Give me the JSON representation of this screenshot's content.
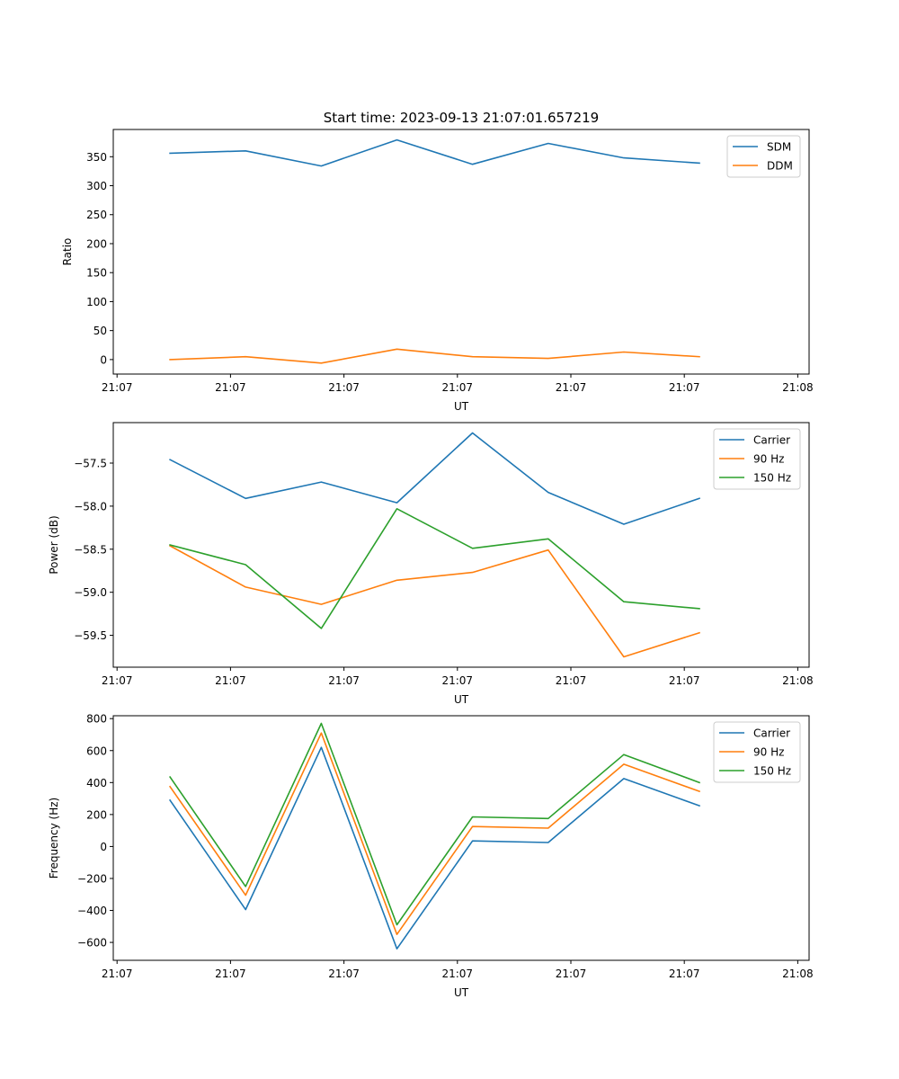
{
  "figure_title": "Start time: 2023-09-13 21:07:01.657219",
  "chart_data": [
    {
      "type": "line",
      "title": "Start time: 2023-09-13 21:07:01.657219",
      "xlabel": "UT",
      "ylabel": "Ratio",
      "x_index": [
        0,
        1,
        2,
        3,
        4,
        5,
        6,
        7
      ],
      "xlim": [
        -0.75,
        8.45
      ],
      "xticks": [
        -0.7,
        0.8,
        2.3,
        3.8,
        5.3,
        6.8,
        8.3
      ],
      "xtick_labels": [
        "21:07",
        "21:07",
        "21:07",
        "21:07",
        "21:07",
        "21:07",
        "21:08"
      ],
      "ylim": [
        -25,
        397
      ],
      "yticks": [
        0,
        50,
        100,
        150,
        200,
        250,
        300,
        350
      ],
      "ytick_labels": [
        "0",
        "50",
        "100",
        "150",
        "200",
        "250",
        "300",
        "350"
      ],
      "legend_position": "top-right",
      "series": [
        {
          "name": "SDM",
          "color": "#1f77b4",
          "values": [
            356,
            360,
            334,
            379,
            337,
            373,
            348,
            339
          ]
        },
        {
          "name": "DDM",
          "color": "#ff7f0e",
          "values": [
            0,
            5,
            -6,
            18,
            5,
            2,
            13,
            5
          ]
        }
      ]
    },
    {
      "type": "line",
      "xlabel": "UT",
      "ylabel": "Power (dB)",
      "x_index": [
        0,
        1,
        2,
        3,
        4,
        5,
        6,
        7
      ],
      "xlim": [
        -0.75,
        8.45
      ],
      "xticks": [
        -0.7,
        0.8,
        2.3,
        3.8,
        5.3,
        6.8,
        8.3
      ],
      "xtick_labels": [
        "21:07",
        "21:07",
        "21:07",
        "21:07",
        "21:07",
        "21:07",
        "21:08"
      ],
      "ylim": [
        -59.87,
        -57.03
      ],
      "yticks": [
        -59.5,
        -59.0,
        -58.5,
        -58.0,
        -57.5
      ],
      "ytick_labels": [
        "−59.5",
        "−59.0",
        "−58.5",
        "−58.0",
        "−57.5"
      ],
      "legend_position": "top-right",
      "series": [
        {
          "name": "Carrier",
          "color": "#1f77b4",
          "values": [
            -57.46,
            -57.91,
            -57.72,
            -57.96,
            -57.15,
            -57.84,
            -58.21,
            -57.91
          ]
        },
        {
          "name": "90 Hz",
          "color": "#ff7f0e",
          "values": [
            -58.46,
            -58.94,
            -59.14,
            -58.86,
            -58.77,
            -58.51,
            -59.75,
            -59.47
          ]
        },
        {
          "name": "150 Hz",
          "color": "#2ca02c",
          "values": [
            -58.45,
            -58.68,
            -59.42,
            -58.03,
            -58.49,
            -58.38,
            -59.11,
            -59.19
          ]
        }
      ]
    },
    {
      "type": "line",
      "xlabel": "UT",
      "ylabel": "Frequency (Hz)",
      "x_index": [
        0,
        1,
        2,
        3,
        4,
        5,
        6,
        7
      ],
      "xlim": [
        -0.75,
        8.45
      ],
      "xticks": [
        -0.7,
        0.8,
        2.3,
        3.8,
        5.3,
        6.8,
        8.3
      ],
      "xtick_labels": [
        "21:07",
        "21:07",
        "21:07",
        "21:07",
        "21:07",
        "21:07",
        "21:08"
      ],
      "ylim": [
        -712,
        818
      ],
      "yticks": [
        -600,
        -400,
        -200,
        0,
        200,
        400,
        600,
        800
      ],
      "ytick_labels": [
        "−600",
        "−400",
        "−200",
        "0",
        "200",
        "400",
        "600",
        "800"
      ],
      "legend_position": "top-right",
      "series": [
        {
          "name": "Carrier",
          "color": "#1f77b4",
          "values": [
            290,
            -395,
            620,
            -640,
            35,
            25,
            425,
            255
          ]
        },
        {
          "name": "90 Hz",
          "color": "#ff7f0e",
          "values": [
            375,
            -305,
            710,
            -550,
            125,
            115,
            515,
            345
          ]
        },
        {
          "name": "150 Hz",
          "color": "#2ca02c",
          "values": [
            435,
            -250,
            770,
            -490,
            185,
            175,
            575,
            400
          ]
        }
      ]
    }
  ]
}
